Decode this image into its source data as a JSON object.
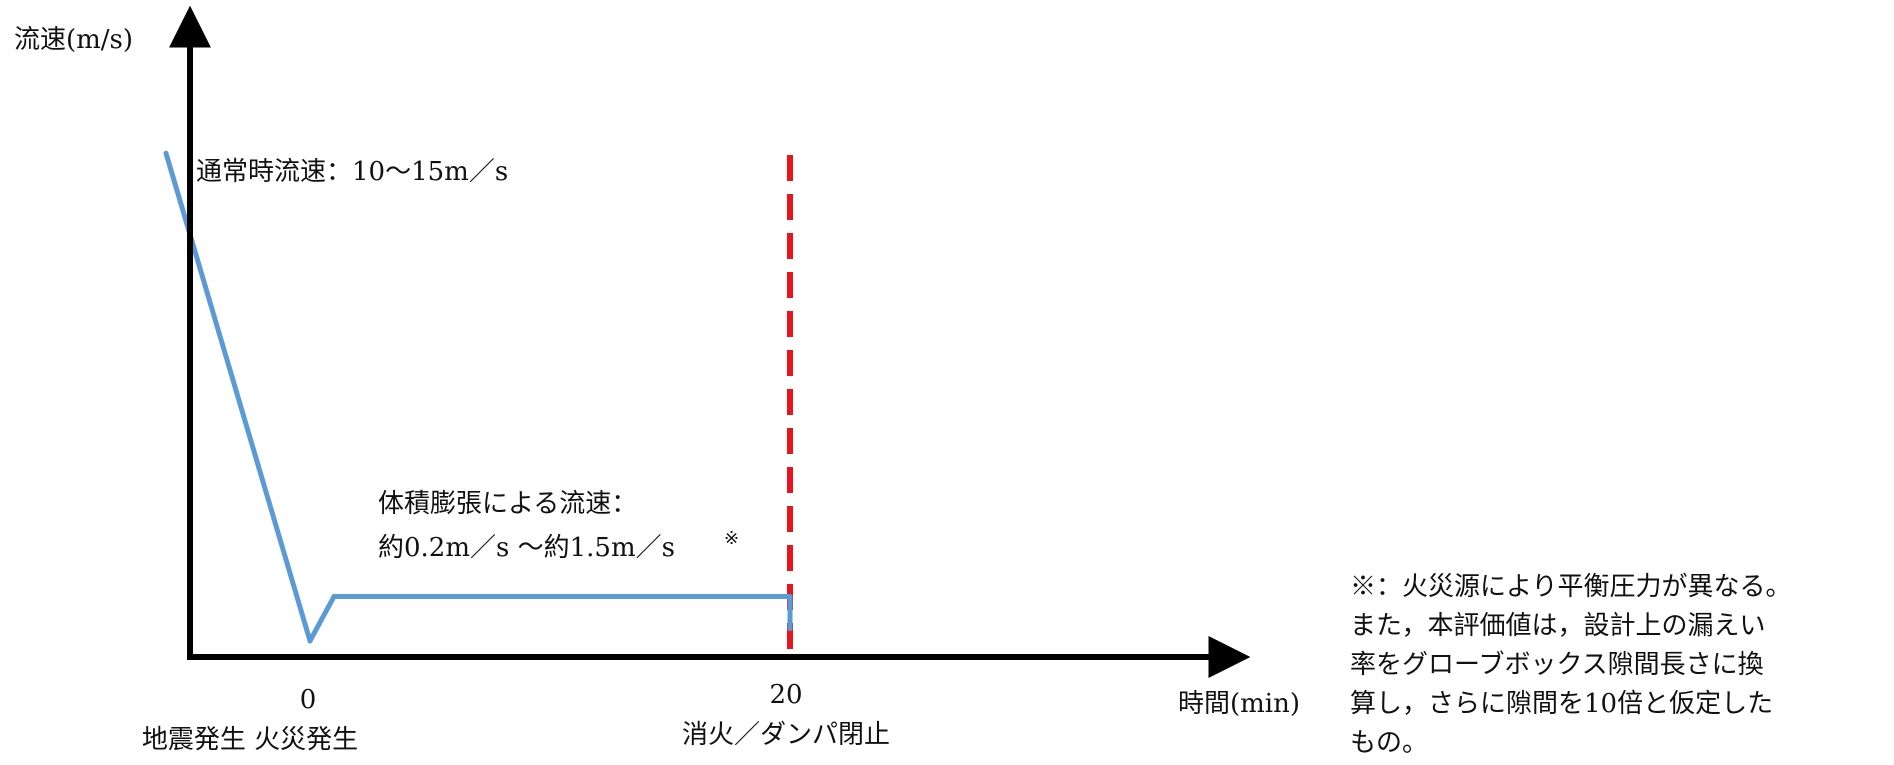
{
  "chart_data": {
    "type": "line",
    "title": "",
    "xlabel": "時間(min)",
    "ylabel": "流速(m/s)",
    "series": [
      {
        "color": "#5b9bd5",
        "points": [
          {
            "x": -6,
            "y": 12.5
          },
          {
            "x": 0,
            "y": 0.4
          },
          {
            "x": 1,
            "y": 1.5
          },
          {
            "x": 20,
            "y": 1.5
          },
          {
            "x": 20,
            "y": 0.7
          }
        ]
      }
    ],
    "x_ticks": [
      {
        "x": 0,
        "value": "0",
        "event": "地震発生 火災発生"
      },
      {
        "x": 20,
        "value": "20",
        "event": "消火／ダンパ閉止"
      }
    ],
    "markers": [
      {
        "x": 20,
        "style": "dashed",
        "color": "#e8141e"
      }
    ],
    "annotations": [
      {
        "id": "normal",
        "lines": [
          "通常時流速：10〜15m／s"
        ]
      },
      {
        "id": "expansion",
        "lines": [
          "体積膨張による流速：",
          "約0.2m／s 〜約1.5m／s"
        ],
        "sup": "※"
      }
    ],
    "axis_color": "#000000"
  },
  "footnote": {
    "lines": [
      "※：火災源により平衡圧力が異なる。",
      "また，本評価値は，設計上の漏えい",
      "率をグローブボックス隙間長さに換",
      "算し，さらに隙間を10倍と仮定した",
      "もの。"
    ]
  }
}
